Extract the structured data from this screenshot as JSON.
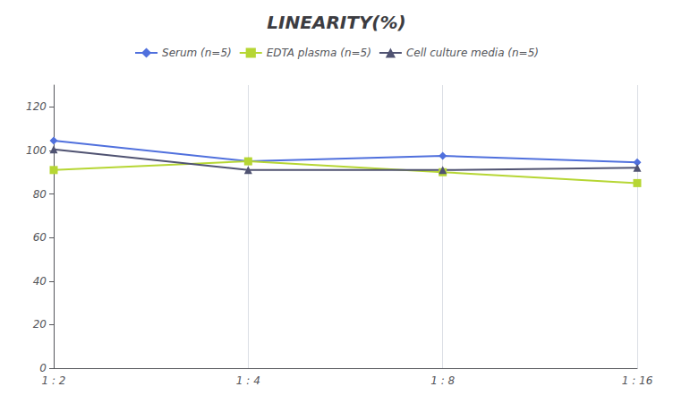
{
  "chart_data": {
    "type": "line",
    "title": "LINEARITY(%)",
    "categories": [
      "1 : 2",
      "1 : 4",
      "1 : 8",
      "1 : 16"
    ],
    "series": [
      {
        "name": "Serum (n=5)",
        "values": [
          104.5,
          95.0,
          97.5,
          94.5
        ],
        "marker": "diamond"
      },
      {
        "name": "EDTA plasma (n=5)",
        "values": [
          91.0,
          95.0,
          90.0,
          85.0
        ],
        "marker": "square"
      },
      {
        "name": "Cell culture media (n=5)",
        "values": [
          100.5,
          91.0,
          91.0,
          92.0
        ],
        "marker": "triangle"
      }
    ],
    "ylim": [
      0,
      130
    ],
    "yticks": [
      0,
      20,
      40,
      60,
      80,
      100,
      120
    ],
    "grid": "x",
    "legend": "top"
  }
}
